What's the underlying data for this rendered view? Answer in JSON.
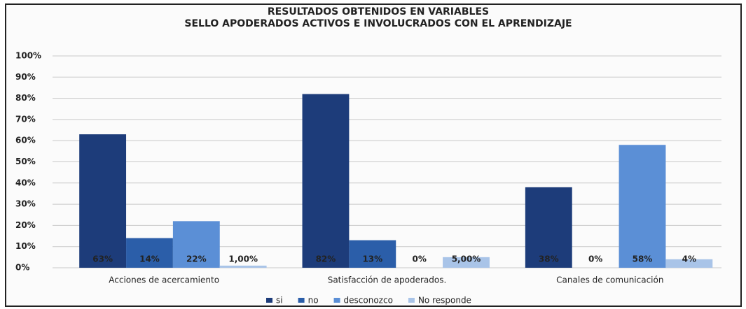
{
  "chart_data": {
    "type": "bar",
    "title": "RESULTADOS OBTENIDOS EN VARIABLES",
    "subtitle": "SELLO APODERADOS ACTIVOS E INVOLUCRADOS CON EL APRENDIZAJE",
    "categories": [
      "Acciones de acercamiento",
      "Satisfacción de apoderados.",
      "Canales de comunicación"
    ],
    "series": [
      {
        "name": "si",
        "color": "#1d3c7a",
        "values": [
          63,
          82,
          38
        ],
        "value_labels": [
          "63%",
          "82%",
          "38%"
        ]
      },
      {
        "name": "no",
        "color": "#2b5ea9",
        "values": [
          14,
          13,
          0
        ],
        "value_labels": [
          "14%",
          "13%",
          "0%"
        ]
      },
      {
        "name": "desconozco",
        "color": "#5b8fd6",
        "values": [
          22,
          0,
          58
        ],
        "value_labels": [
          "22%",
          "0%",
          "58%"
        ]
      },
      {
        "name": "No responde",
        "color": "#a9c4e8",
        "values": [
          1,
          5,
          4
        ],
        "value_labels": [
          "1,00%",
          "5,00%",
          "4%"
        ]
      }
    ],
    "ylim": [
      0,
      100
    ],
    "yticks": [
      {
        "value": 0,
        "label": "0%"
      },
      {
        "value": 10,
        "label": "10%"
      },
      {
        "value": 20,
        "label": "20%"
      },
      {
        "value": 30,
        "label": "30%"
      },
      {
        "value": 40,
        "label": "40%"
      },
      {
        "value": 50,
        "label": "50%"
      },
      {
        "value": 60,
        "label": "60%"
      },
      {
        "value": 70,
        "label": "70%"
      },
      {
        "value": 80,
        "label": "80%"
      },
      {
        "value": 90,
        "label": "90%"
      },
      {
        "value": 100,
        "label": "100%"
      }
    ],
    "grid": true,
    "legend": "bottom"
  }
}
